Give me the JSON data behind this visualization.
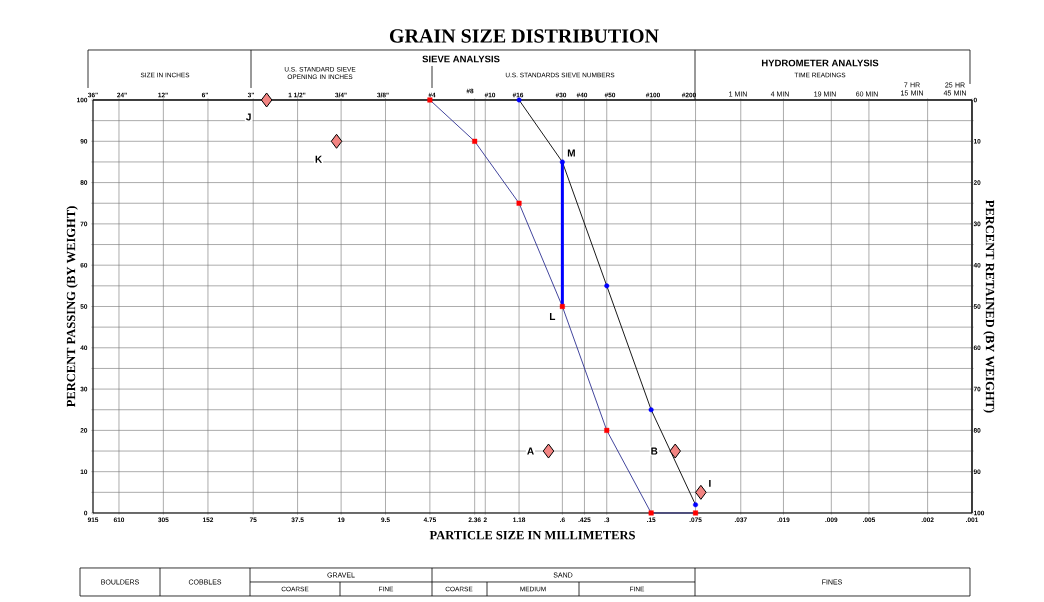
{
  "chart_data": {
    "type": "line",
    "title": "GRAIN SIZE DISTRIBUTION",
    "xlabel": "PARTICLE SIZE IN MILLIMETERS",
    "ylabel": "PERCENT PASSING (BY WEIGHT)",
    "y2label": "PERCENT RETAINED (BY WEIGHT)",
    "log": "x",
    "grid": true,
    "xlim": [
      915,
      0.001
    ],
    "ylim": [
      0,
      100
    ],
    "y2lim": [
      100,
      0
    ],
    "xticks": [
      915,
      610,
      305,
      152,
      75,
      37.5,
      19,
      9.5,
      4.75,
      2.36,
      2,
      1.18,
      {
        "value": 0.6,
        "label": ".6"
      },
      {
        "value": 0.425,
        "label": ".425"
      },
      {
        "value": 0.3,
        "label": ".3"
      },
      {
        "value": 0.15,
        "label": ".15"
      },
      {
        "value": 0.075,
        "label": ".075"
      },
      {
        "value": 0.037,
        "label": ".037"
      },
      {
        "value": 0.019,
        "label": ".019"
      },
      {
        "value": 0.009,
        "label": ".009"
      },
      {
        "value": 0.005,
        "label": ".005"
      },
      {
        "value": 0.002,
        "label": ".002"
      },
      {
        "value": 0.001,
        "label": ".001"
      }
    ],
    "yticks": [
      0,
      {
        "value": 5,
        "label": null
      },
      10,
      {
        "value": 15,
        "label": null
      },
      20,
      {
        "value": 25,
        "label": null
      },
      30,
      {
        "value": 35,
        "label": null
      },
      40,
      {
        "value": 45,
        "label": null
      },
      50,
      {
        "value": 55,
        "label": null
      },
      60,
      {
        "value": 65,
        "label": null
      },
      70,
      {
        "value": 75,
        "label": null
      },
      80,
      {
        "value": 85,
        "label": null
      },
      90,
      {
        "value": 95,
        "label": null
      },
      100
    ],
    "y2ticks": [
      0,
      10,
      20,
      30,
      40,
      50,
      60,
      70,
      80,
      90,
      100
    ],
    "series": [
      {
        "color": "#2e3192",
        "marker": "square",
        "colors": [
          "#ff0000",
          "#ff0000",
          "#ff0000",
          "#ff0000",
          "#ff0000",
          "#ff0000",
          "#ff0000"
        ],
        "x": [
          4.75,
          2.36,
          1.18,
          0.6,
          0.3,
          0.15,
          0.075
        ],
        "values": [
          100,
          90,
          75,
          50,
          20,
          0,
          0
        ]
      },
      {
        "color": "#000000",
        "marker": "circle",
        "colors": [
          "#0000ff",
          "#0000ff",
          "#0000ff",
          "#0000ff",
          "#0000ff"
        ],
        "x": [
          1.18,
          0.6,
          0.3,
          0.15,
          0.075
        ],
        "values": [
          100,
          85,
          55,
          25,
          2
        ]
      },
      {
        "color": "#0000ff",
        "marker": "none",
        "x": [
          0.6,
          0.6
        ],
        "values": [
          50,
          85
        ]
      },
      {
        "type": "scatter",
        "color": "#f28482",
        "marker": "diamond",
        "x": [
          60.8,
          20.4,
          0.745,
          0.103,
          0.069
        ],
        "values": [
          100,
          90,
          15,
          15,
          5
        ]
      }
    ],
    "annotations": [
      "SIZE IN INCHES",
      "U.S. STANDARD SIEVE OPENING IN INCHES",
      "SIEVE ANALYSIS",
      "U.S. STANDARDS SIEVE NUMBERS",
      "HYDROMETER ANALYSIS",
      "TIME READINGS",
      "36\"",
      "24\"",
      "12\"",
      "6\"",
      "3\"",
      "1 1/2\"",
      "3/4\"",
      "3/8\"",
      "#4",
      "#8",
      "#10",
      "#16",
      "#30",
      "#40",
      "#50",
      "#100",
      "#200",
      "1 MIN",
      "4 MIN",
      "19 MIN",
      "60 MIN",
      "7 HR 15 MIN",
      "25 HR 45 MIN",
      "BOULDERS",
      "COBBLES",
      "GRAVEL",
      "COARSE",
      "FINE",
      "SAND",
      "COARSE",
      "MEDIUM",
      "FINE",
      "FINES",
      {
        "text": "J",
        "x": 60.8,
        "y": 100
      },
      {
        "text": "K",
        "x": 20.4,
        "y": 90
      },
      {
        "text": "M",
        "x": 0.6,
        "y": 85
      },
      {
        "text": "L",
        "x": 0.6,
        "y": 50
      },
      {
        "text": "A",
        "x": 0.745,
        "y": 15
      },
      {
        "text": "B",
        "x": 0.103,
        "y": 15
      },
      {
        "text": "I",
        "x": 0.069,
        "y": 5
      }
    ]
  }
}
